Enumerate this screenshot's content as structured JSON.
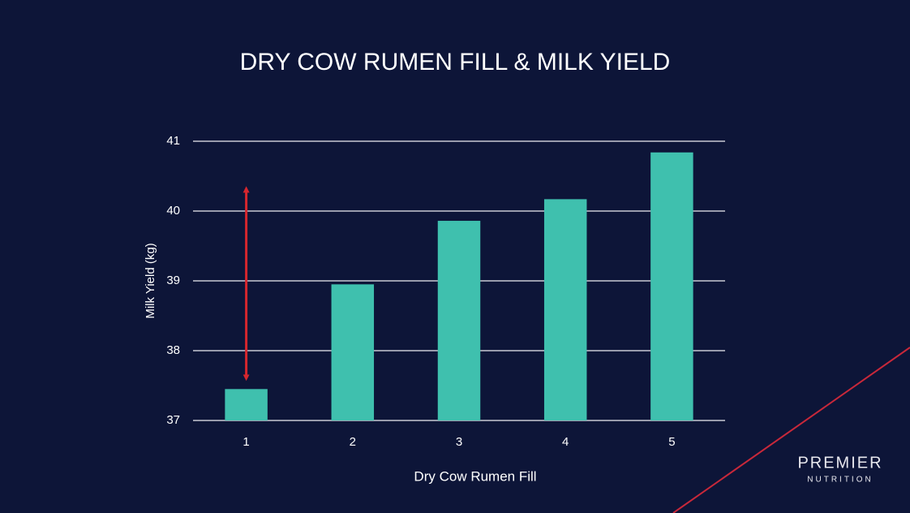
{
  "chart_data": {
    "type": "bar",
    "title": "DRY COW RUMEN FILL & MILK YIELD",
    "x_label": "Dry Cow Rumen Fill",
    "y_label": "Milk Yield (kg)",
    "categories": [
      "1",
      "2",
      "3",
      "4",
      "5"
    ],
    "values": [
      37.45,
      38.95,
      39.86,
      40.17,
      40.84
    ],
    "color": "#3fc0ae",
    "ylim": [
      37,
      41
    ],
    "yticks": [
      37,
      38,
      39,
      40,
      41
    ],
    "grid": true
  },
  "logo": {
    "line1": "PREMIER",
    "line2": "NUTRITION"
  }
}
